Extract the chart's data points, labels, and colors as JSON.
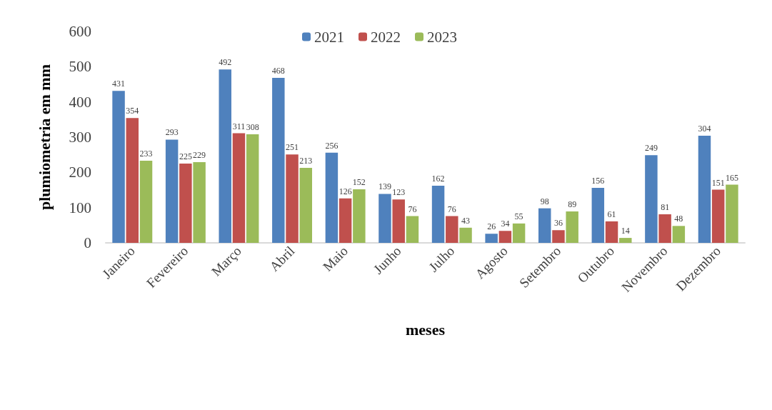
{
  "chart_data": {
    "type": "bar",
    "xlabel": "meses",
    "ylabel": "plumiometria em mm",
    "categories": [
      "Janeiro",
      "Fevereiro",
      "Março",
      "Abril",
      "Maio",
      "Junho",
      "Julho",
      "Agosto",
      "Setembro",
      "Outubro",
      "Novembro",
      "Dezembro"
    ],
    "series": [
      {
        "name": "2021",
        "color": "#4f81bd",
        "values": [
          431,
          293,
          492,
          468,
          256,
          139,
          162,
          26,
          98,
          156,
          249,
          304
        ]
      },
      {
        "name": "2022",
        "color": "#c0504d",
        "values": [
          354,
          225,
          311,
          251,
          126,
          123,
          76,
          34,
          36,
          61,
          81,
          151
        ]
      },
      {
        "name": "2023",
        "color": "#9bbb59",
        "values": [
          233,
          229,
          308,
          213,
          152,
          76,
          43,
          55,
          89,
          14,
          48,
          165
        ]
      }
    ],
    "ylim": [
      0,
      600
    ],
    "yticks": [
      0,
      100,
      200,
      300,
      400,
      500,
      600
    ],
    "grid": false,
    "legend": "top",
    "data_labels": true
  }
}
